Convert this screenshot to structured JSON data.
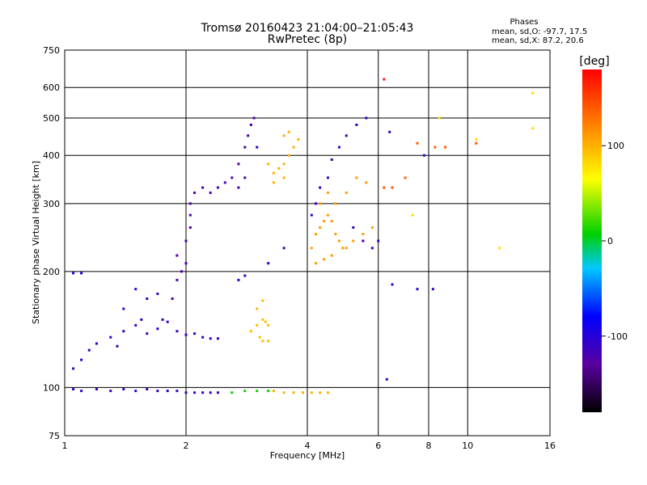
{
  "title": {
    "line1": "Tromsø 20160423 21:04:00–21:05:43",
    "line2": "RwPretec (8p)"
  },
  "phase_stats": {
    "header": "Phases",
    "o_mode": "mean, sd,O: -97.7, 17.5",
    "x_mode": "mean, sd,X:  87.2, 20.6"
  },
  "colorbar": {
    "label": "[deg]",
    "ticks": [
      {
        "label": "100",
        "value": 100
      },
      {
        "label": "0",
        "value": 0
      },
      {
        "label": "-100",
        "value": -100
      }
    ],
    "range": [
      -180,
      180
    ]
  },
  "chart_data": {
    "type": "scatter",
    "title": "Tromsø 20160423 21:04:00–21:05:43",
    "subtitle": "RwPretec (8p)",
    "xlabel": "Frequency [MHz]",
    "ylabel": "Stationary phase Virtual Height [km]",
    "xscale": "log",
    "yscale": "log",
    "xlim": [
      1,
      16
    ],
    "ylim": [
      75,
      750
    ],
    "xticks": [
      1,
      2,
      4,
      6,
      8,
      10,
      16
    ],
    "xtick_labels": [
      "1",
      "2",
      "4",
      "6",
      "8",
      "10",
      "16"
    ],
    "yticks": [
      75,
      100,
      200,
      300,
      400,
      500,
      600,
      750
    ],
    "ytick_labels": [
      "75",
      "100",
      "200",
      "300",
      "400",
      "500",
      "600",
      "750"
    ],
    "grid": true,
    "color_quantity": "phase (deg)",
    "clusters": [
      {
        "phase": -110,
        "points": [
          [
            1.05,
            99
          ],
          [
            1.1,
            98
          ],
          [
            1.2,
            99
          ],
          [
            1.3,
            98
          ],
          [
            1.4,
            99
          ],
          [
            1.5,
            98
          ],
          [
            1.6,
            99
          ],
          [
            1.7,
            98
          ],
          [
            1.8,
            98
          ],
          [
            1.9,
            98
          ],
          [
            2.0,
            97
          ],
          [
            2.1,
            97
          ],
          [
            2.2,
            97
          ],
          [
            2.3,
            97
          ],
          [
            2.4,
            97
          ]
        ]
      },
      {
        "phase": 10,
        "points": [
          [
            2.6,
            97
          ],
          [
            2.8,
            98
          ],
          [
            3.0,
            98
          ],
          [
            3.2,
            98
          ]
        ]
      },
      {
        "phase": 100,
        "points": [
          [
            3.3,
            98
          ],
          [
            3.5,
            97
          ],
          [
            3.7,
            97
          ],
          [
            3.9,
            97
          ],
          [
            4.1,
            97
          ],
          [
            4.3,
            97
          ],
          [
            4.5,
            97
          ]
        ]
      },
      {
        "phase": -110,
        "points": [
          [
            1.05,
            112
          ],
          [
            1.1,
            118
          ],
          [
            1.15,
            125
          ],
          [
            1.2,
            130
          ],
          [
            1.3,
            135
          ],
          [
            1.35,
            128
          ],
          [
            1.4,
            140
          ],
          [
            1.5,
            145
          ],
          [
            1.55,
            150
          ],
          [
            1.6,
            138
          ],
          [
            1.7,
            142
          ],
          [
            1.75,
            150
          ],
          [
            1.8,
            148
          ],
          [
            1.9,
            140
          ],
          [
            2.0,
            137
          ],
          [
            2.1,
            138
          ],
          [
            2.2,
            135
          ],
          [
            2.3,
            134
          ],
          [
            2.4,
            134
          ],
          [
            1.4,
            160
          ],
          [
            1.6,
            170
          ],
          [
            1.5,
            180
          ],
          [
            1.7,
            175
          ]
        ]
      },
      {
        "phase": -120,
        "points": [
          [
            1.85,
            170
          ],
          [
            1.9,
            190
          ],
          [
            1.95,
            200
          ],
          [
            2.0,
            210
          ],
          [
            1.9,
            220
          ],
          [
            2.0,
            240
          ],
          [
            2.05,
            260
          ],
          [
            2.05,
            280
          ],
          [
            2.05,
            300
          ],
          [
            2.1,
            320
          ],
          [
            2.2,
            330
          ],
          [
            2.3,
            320
          ],
          [
            2.4,
            330
          ],
          [
            2.5,
            340
          ],
          [
            2.6,
            350
          ],
          [
            2.7,
            380
          ],
          [
            2.8,
            420
          ],
          [
            2.85,
            450
          ],
          [
            2.9,
            480
          ],
          [
            2.95,
            500
          ],
          [
            2.8,
            350
          ],
          [
            2.7,
            330
          ]
        ]
      },
      {
        "phase": -100,
        "points": [
          [
            2.7,
            190
          ],
          [
            2.8,
            195
          ],
          [
            3.2,
            210
          ],
          [
            3.5,
            230
          ],
          [
            3.0,
            420
          ],
          [
            1.05,
            198
          ],
          [
            1.1,
            198
          ]
        ]
      },
      {
        "phase": 95,
        "points": [
          [
            2.9,
            140
          ],
          [
            3.0,
            145
          ],
          [
            3.1,
            150
          ],
          [
            3.15,
            148
          ],
          [
            3.2,
            145
          ],
          [
            3.05,
            135
          ],
          [
            3.1,
            132
          ],
          [
            3.2,
            132
          ],
          [
            3.0,
            160
          ],
          [
            3.1,
            168
          ]
        ]
      },
      {
        "phase": 100,
        "points": [
          [
            3.2,
            380
          ],
          [
            3.3,
            360
          ],
          [
            3.4,
            370
          ],
          [
            3.5,
            380
          ],
          [
            3.6,
            400
          ],
          [
            3.7,
            420
          ],
          [
            3.8,
            440
          ],
          [
            3.3,
            340
          ],
          [
            3.5,
            350
          ],
          [
            3.6,
            460
          ],
          [
            3.5,
            450
          ]
        ]
      },
      {
        "phase": 110,
        "points": [
          [
            4.1,
            230
          ],
          [
            4.2,
            250
          ],
          [
            4.3,
            260
          ],
          [
            4.4,
            270
          ],
          [
            4.5,
            280
          ],
          [
            4.6,
            270
          ],
          [
            4.7,
            250
          ],
          [
            4.8,
            240
          ],
          [
            4.9,
            230
          ],
          [
            5.0,
            230
          ],
          [
            5.2,
            240
          ],
          [
            5.5,
            250
          ],
          [
            5.8,
            260
          ],
          [
            4.2,
            210
          ],
          [
            4.4,
            215
          ],
          [
            4.6,
            220
          ],
          [
            4.3,
            300
          ],
          [
            4.5,
            320
          ],
          [
            4.7,
            300
          ],
          [
            5.0,
            320
          ],
          [
            5.3,
            350
          ],
          [
            5.6,
            340
          ]
        ]
      },
      {
        "phase": -110,
        "points": [
          [
            4.1,
            280
          ],
          [
            4.2,
            300
          ],
          [
            4.3,
            330
          ],
          [
            4.5,
            350
          ],
          [
            4.6,
            390
          ],
          [
            4.8,
            420
          ],
          [
            5.0,
            450
          ],
          [
            5.3,
            480
          ],
          [
            5.6,
            500
          ],
          [
            5.2,
            260
          ],
          [
            5.5,
            240
          ],
          [
            5.8,
            230
          ],
          [
            6.0,
            240
          ]
        ]
      },
      {
        "phase": 140,
        "points": [
          [
            6.2,
            330
          ],
          [
            6.5,
            330
          ],
          [
            7.0,
            350
          ],
          [
            7.5,
            430
          ],
          [
            8.3,
            420
          ],
          [
            8.8,
            420
          ],
          [
            10.5,
            430
          ]
        ]
      },
      {
        "phase": -110,
        "points": [
          [
            6.5,
            185
          ],
          [
            7.5,
            180
          ],
          [
            8.2,
            180
          ],
          [
            6.3,
            105
          ],
          [
            6.4,
            460
          ],
          [
            7.8,
            400
          ]
        ]
      },
      {
        "phase": 80,
        "points": [
          [
            7.3,
            280
          ],
          [
            8.5,
            500
          ],
          [
            10.5,
            440
          ],
          [
            12,
            230
          ],
          [
            14.5,
            580
          ],
          [
            14.5,
            470
          ]
        ]
      },
      {
        "phase": 170,
        "points": [
          [
            6.2,
            630
          ]
        ]
      }
    ]
  }
}
